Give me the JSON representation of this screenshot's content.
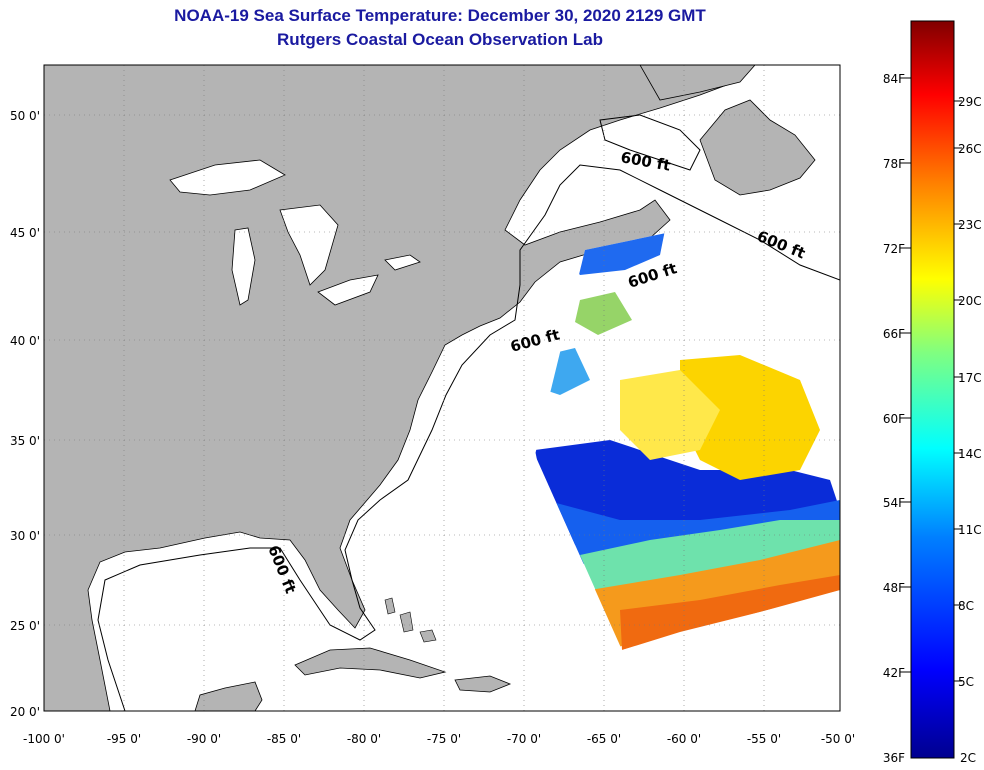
{
  "header": {
    "title": "NOAA-19 Sea Surface Temperature:  December 30, 2020 2129 GMT",
    "subtitle": "Rutgers Coastal Ocean Observation Lab"
  },
  "map": {
    "lon_labels": [
      "-100 0'",
      "-95 0'",
      "-90 0'",
      "-85 0'",
      "-80 0'",
      "-75 0'",
      "-70 0'",
      "-65 0'",
      "-60 0'",
      "-55 0'",
      "-50 0'"
    ],
    "lat_labels": [
      "50 0'",
      "45 0'",
      "40 0'",
      "35 0'",
      "30 0'",
      "25 0'",
      "20 0'"
    ],
    "depth_label": "600 ft",
    "land_color": "#b4b4b4",
    "ocean_color": "#ffffff"
  },
  "colorbar": {
    "fahrenheit": [
      "84F",
      "78F",
      "72F",
      "66F",
      "60F",
      "54F",
      "48F",
      "42F",
      "36F"
    ],
    "celsius": [
      "29C",
      "26C",
      "23C",
      "20C",
      "17C",
      "14C",
      "11C",
      "8C",
      "5C",
      "2C"
    ],
    "gradient": [
      "#00008f",
      "#0000ff",
      "#0080ff",
      "#00ffff",
      "#80ff80",
      "#ffff00",
      "#ff8000",
      "#ff0000",
      "#800000"
    ]
  }
}
